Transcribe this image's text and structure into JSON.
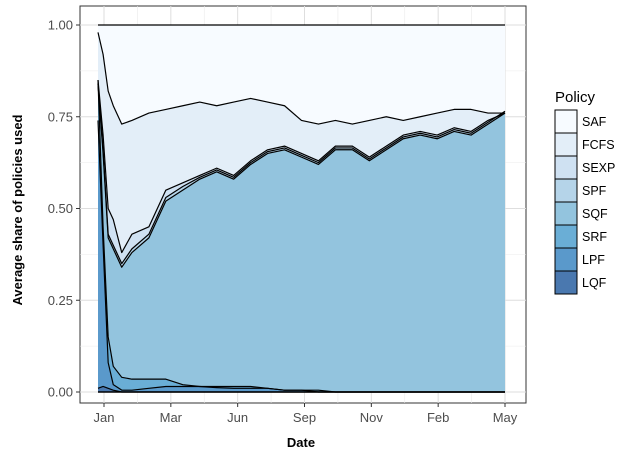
{
  "chart_data": {
    "type": "area",
    "xlabel": "Date",
    "ylabel": "Average share of policies used",
    "x_tick_labels": [
      "Jan",
      "Mar",
      "Jun",
      "Sep",
      "Nov",
      "Feb",
      "May"
    ],
    "y_tick_labels": [
      "0.00",
      "0.25",
      "0.50",
      "0.75",
      "1.00"
    ],
    "ylim": [
      0,
      1
    ],
    "grid": true,
    "legend": {
      "title": "Policy",
      "placement": "right",
      "entries": [
        {
          "name": "SAF",
          "color": "#f7fbff"
        },
        {
          "name": "FCFS",
          "color": "#e3eef8"
        },
        {
          "name": "SEXP",
          "color": "#cfe1f2"
        },
        {
          "name": "SPF",
          "color": "#b5d4e9"
        },
        {
          "name": "SQF",
          "color": "#93c4de"
        },
        {
          "name": "SRF",
          "color": "#6aaed6"
        },
        {
          "name": "LPF",
          "color": "#5a99cb"
        },
        {
          "name": "LQF",
          "color": "#4a78af"
        }
      ]
    },
    "x": [
      0,
      0.15,
      0.3,
      0.45,
      0.7,
      1.0,
      1.5,
      2.0,
      2.5,
      3.0,
      3.5,
      4.0,
      4.5,
      5.0,
      5.5,
      6.0,
      6.5,
      7.0,
      7.5,
      8.0,
      8.5,
      9.0,
      9.5,
      10.0,
      10.5,
      11.0,
      11.5,
      12.0
    ],
    "cumulative_boundaries": [
      {
        "name": "LQF",
        "values": [
          0.01,
          0.015,
          0.01,
          0.005,
          0,
          0,
          0,
          0,
          0,
          0,
          0,
          0,
          0,
          0,
          0,
          0,
          0,
          0,
          0,
          0,
          0,
          0,
          0,
          0,
          0,
          0,
          0,
          0
        ]
      },
      {
        "name": "LPF",
        "values": [
          0.74,
          0.4,
          0.08,
          0.02,
          0.005,
          0.005,
          0.01,
          0.015,
          0.015,
          0.015,
          0.012,
          0.01,
          0.01,
          0.01,
          0.005,
          0.005,
          0,
          0,
          0,
          0,
          0,
          0,
          0,
          0,
          0,
          0,
          0,
          0
        ]
      },
      {
        "name": "SRF",
        "values": [
          0.85,
          0.45,
          0.15,
          0.07,
          0.04,
          0.035,
          0.035,
          0.035,
          0.02,
          0.015,
          0.015,
          0.015,
          0.015,
          0.01,
          0.005,
          0.005,
          0.005,
          0,
          0,
          0,
          0,
          0,
          0,
          0,
          0,
          0,
          0,
          0
        ]
      },
      {
        "name": "SQF",
        "values": [
          0.84,
          0.65,
          0.42,
          0.39,
          0.34,
          0.38,
          0.42,
          0.52,
          0.55,
          0.58,
          0.6,
          0.58,
          0.62,
          0.65,
          0.66,
          0.64,
          0.62,
          0.66,
          0.66,
          0.63,
          0.66,
          0.69,
          0.7,
          0.69,
          0.71,
          0.7,
          0.73,
          0.76
        ]
      },
      {
        "name": "SPF",
        "values": [
          0.84,
          0.66,
          0.43,
          0.4,
          0.35,
          0.39,
          0.43,
          0.53,
          0.56,
          0.585,
          0.605,
          0.585,
          0.625,
          0.655,
          0.665,
          0.645,
          0.625,
          0.665,
          0.665,
          0.635,
          0.665,
          0.695,
          0.705,
          0.695,
          0.715,
          0.705,
          0.735,
          0.765
        ]
      },
      {
        "name": "SEXP",
        "values": [
          0.85,
          0.7,
          0.5,
          0.47,
          0.38,
          0.43,
          0.45,
          0.55,
          0.57,
          0.59,
          0.61,
          0.59,
          0.63,
          0.66,
          0.67,
          0.65,
          0.63,
          0.67,
          0.67,
          0.64,
          0.67,
          0.7,
          0.71,
          0.7,
          0.72,
          0.71,
          0.74,
          0.76
        ]
      },
      {
        "name": "FCFS",
        "values": [
          0.98,
          0.92,
          0.82,
          0.78,
          0.73,
          0.74,
          0.76,
          0.77,
          0.78,
          0.79,
          0.78,
          0.79,
          0.8,
          0.79,
          0.78,
          0.74,
          0.73,
          0.74,
          0.73,
          0.74,
          0.75,
          0.74,
          0.75,
          0.76,
          0.77,
          0.77,
          0.76,
          0.76
        ]
      },
      {
        "name": "SAF",
        "values": [
          1,
          1,
          1,
          1,
          1,
          1,
          1,
          1,
          1,
          1,
          1,
          1,
          1,
          1,
          1,
          1,
          1,
          1,
          1,
          1,
          1,
          1,
          1,
          1,
          1,
          1,
          1,
          1
        ]
      }
    ]
  }
}
